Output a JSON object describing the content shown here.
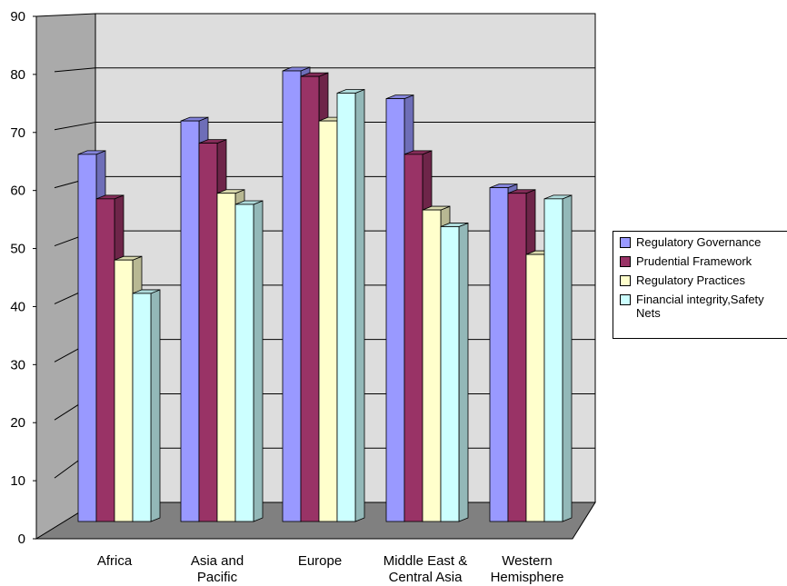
{
  "chart_data": {
    "type": "bar",
    "categories": [
      "Africa",
      "Asia and Pacific",
      "Europe",
      "Middle East & Central Asia",
      "Western Hemisphere"
    ],
    "category_labels": [
      [
        "Africa"
      ],
      [
        "Asia and",
        "Pacific"
      ],
      [
        "Europe"
      ],
      [
        "Middle East &",
        "Central Asia"
      ],
      [
        "Western",
        "Hemisphere"
      ]
    ],
    "series": [
      {
        "name": "Regulatory Governance",
        "values": [
          66,
          72,
          81,
          76,
          60
        ],
        "color": "#9999ff"
      },
      {
        "name": "Prudential Framework",
        "values": [
          58,
          68,
          80,
          66,
          59
        ],
        "color": "#993366"
      },
      {
        "name": "Regulatory Practices",
        "values": [
          47,
          59,
          72,
          56,
          48
        ],
        "color": "#ffffcc"
      },
      {
        "name": "Financial integrity,Safety Nets",
        "values": [
          41,
          57,
          77,
          53,
          58
        ],
        "color": "#ccffff"
      }
    ],
    "legend_lines": [
      [
        "Regulatory Governance"
      ],
      [
        "Prudential Framework"
      ],
      [
        "Regulatory Practices"
      ],
      [
        "Financial integrity,Safety",
        "Nets"
      ]
    ],
    "yticks": [
      "0",
      "10",
      "20",
      "30",
      "40",
      "50",
      "60",
      "70",
      "80",
      "90"
    ],
    "ylim": [
      0,
      90
    ],
    "grid": true,
    "three_d": true,
    "legend_position": "right",
    "colors": {
      "back_wall": "#dddddd",
      "side_wall": "#aaaaaa",
      "floor": "#808080"
    }
  }
}
